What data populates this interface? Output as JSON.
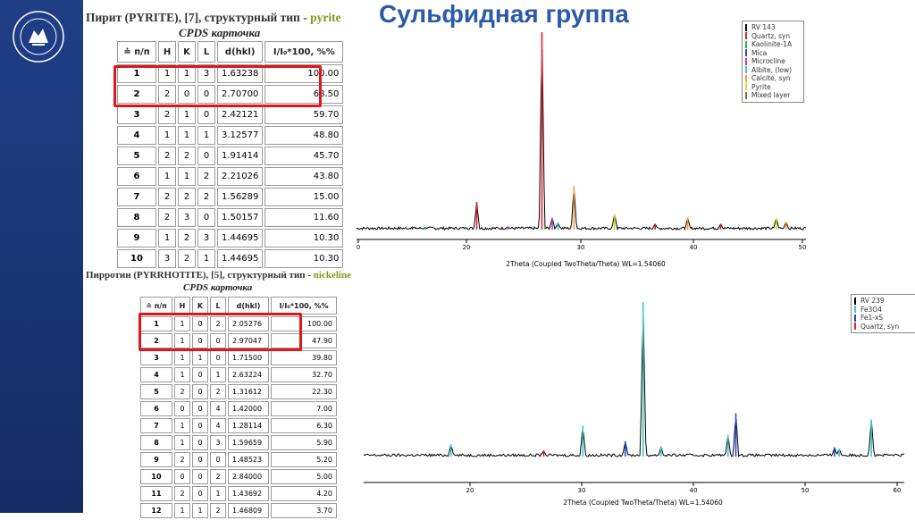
{
  "slide": {
    "title": "Сульфидная группа"
  },
  "pyrite": {
    "heading_prefix": "Пирит (PYRITE), [7], структурный тип - ",
    "heading_highlight": "pyrite",
    "card_label": "CPDS карточка",
    "headers": [
      "≐ п/п",
      "H",
      "K",
      "L",
      "d(hkl)",
      "I/I₀*100, %%"
    ],
    "rows": [
      [
        "1",
        "1",
        "1",
        "3",
        "1.63238",
        "100.00"
      ],
      [
        "2",
        "2",
        "0",
        "0",
        "2.70700",
        "68.50"
      ],
      [
        "3",
        "2",
        "1",
        "0",
        "2.42121",
        "59.70"
      ],
      [
        "4",
        "1",
        "1",
        "1",
        "3.12577",
        "48.80"
      ],
      [
        "5",
        "2",
        "2",
        "0",
        "1.91414",
        "45.70"
      ],
      [
        "6",
        "1",
        "1",
        "2",
        "2.21026",
        "43.80"
      ],
      [
        "7",
        "2",
        "2",
        "2",
        "1.56289",
        "15.00"
      ],
      [
        "8",
        "2",
        "3",
        "0",
        "1.50157",
        "11.60"
      ],
      [
        "9",
        "1",
        "2",
        "3",
        "1.44695",
        "10.30"
      ],
      [
        "10",
        "3",
        "2",
        "1",
        "1.44695",
        "10.30"
      ]
    ]
  },
  "pyrrhotite": {
    "heading_prefix": "Пирротин (PYRRHOTITE), [5], структурный тип - ",
    "heading_highlight": "nickeline",
    "card_label": "CPDS карточка",
    "headers": [
      "≐ п/п",
      "H",
      "K",
      "L",
      "d(hkl)",
      "I/I₀*100, %%"
    ],
    "rows": [
      [
        "1",
        "1",
        "0",
        "2",
        "2.05276",
        "100.00"
      ],
      [
        "2",
        "1",
        "0",
        "0",
        "2.97047",
        "47.90"
      ],
      [
        "3",
        "1",
        "1",
        "0",
        "1.71500",
        "39.80"
      ],
      [
        "4",
        "1",
        "0",
        "1",
        "2.63224",
        "32.70"
      ],
      [
        "5",
        "2",
        "0",
        "2",
        "1.31612",
        "22.30"
      ],
      [
        "6",
        "0",
        "0",
        "4",
        "1.42000",
        "7.00"
      ],
      [
        "7",
        "1",
        "0",
        "4",
        "1.28114",
        "6.30"
      ],
      [
        "8",
        "1",
        "0",
        "3",
        "1.59659",
        "5.90"
      ],
      [
        "9",
        "2",
        "0",
        "0",
        "1.48523",
        "5.20"
      ],
      [
        "10",
        "0",
        "0",
        "2",
        "2.84000",
        "5.00"
      ],
      [
        "11",
        "2",
        "0",
        "1",
        "1.43692",
        "4.20"
      ],
      [
        "12",
        "1",
        "1",
        "2",
        "1.46809",
        "3.70"
      ]
    ]
  },
  "colors": {
    "title": "#2c5aa8",
    "highlight_box": "#e0161b",
    "left_band": "#1f3e86",
    "pattern_line": "#000000"
  },
  "chart_data": [
    {
      "type": "line",
      "xlabel": "2Theta (Coupled TwoTheta/Theta) WL=1.54060",
      "xlim": [
        0,
        50
      ],
      "x_ticks": [
        "0",
        "20",
        "30",
        "40",
        "50"
      ],
      "legend_position": "top-right",
      "legend": [
        {
          "name": "RV 143",
          "color": "#000000"
        },
        {
          "name": "Quartz, syn",
          "color": "#e8232a"
        },
        {
          "name": "Kaolinite-1A",
          "color": "#22bb44"
        },
        {
          "name": "Mica",
          "color": "#2244dd"
        },
        {
          "name": "Microcline",
          "color": "#cc33cc"
        },
        {
          "name": "Albite, (low)",
          "color": "#33cccc"
        },
        {
          "name": "Calcite, syn",
          "color": "#ff9933"
        },
        {
          "name": "Pyrite",
          "color": "#dddd22"
        },
        {
          "name": "Mixed layer",
          "color": "#996633"
        }
      ],
      "peaks": [
        {
          "x": 10.0,
          "y": 1.5,
          "color": "#2244dd"
        },
        {
          "x": 12.4,
          "y": 1.2,
          "color": "#22bb44"
        },
        {
          "x": 19.8,
          "y": 1.3,
          "color": "#22bb44"
        },
        {
          "x": 20.9,
          "y": 14,
          "color": "#e8232a"
        },
        {
          "x": 23.6,
          "y": 1.6,
          "color": "#cc33cc"
        },
        {
          "x": 26.6,
          "y": 100,
          "color": "#e8232a"
        },
        {
          "x": 27.5,
          "y": 6,
          "color": "#cc33cc"
        },
        {
          "x": 28.0,
          "y": 3.5,
          "color": "#33cccc"
        },
        {
          "x": 29.4,
          "y": 22,
          "color": "#ff9933"
        },
        {
          "x": 33.0,
          "y": 8,
          "color": "#dddd22"
        },
        {
          "x": 36.6,
          "y": 3,
          "color": "#e8232a"
        },
        {
          "x": 39.5,
          "y": 6,
          "color": "#ff9933"
        },
        {
          "x": 42.5,
          "y": 3,
          "color": "#e8232a"
        },
        {
          "x": 47.6,
          "y": 6,
          "color": "#dddd22"
        },
        {
          "x": 48.5,
          "y": 4,
          "color": "#ff9933"
        }
      ]
    },
    {
      "type": "line",
      "xlabel": "2Theta (Coupled TwoTheta/Theta) WL=1.54060",
      "xlim": [
        10,
        60
      ],
      "x_ticks": [
        "20",
        "30",
        "40",
        "50",
        "60"
      ],
      "legend_position": "top-right",
      "legend": [
        {
          "name": "RV 239",
          "color": "#000000"
        },
        {
          "name": "Fe3O4",
          "color": "#33cccc"
        },
        {
          "name": "Fe1-xS",
          "color": "#2244dd"
        },
        {
          "name": "Quartz, syn",
          "color": "#e8232a"
        }
      ],
      "peaks": [
        {
          "x": 18.3,
          "y": 8,
          "color": "#33cccc"
        },
        {
          "x": 26.6,
          "y": 4,
          "color": "#e8232a"
        },
        {
          "x": 30.1,
          "y": 20,
          "color": "#33cccc"
        },
        {
          "x": 33.9,
          "y": 10,
          "color": "#2244dd"
        },
        {
          "x": 35.5,
          "y": 100,
          "color": "#33cccc"
        },
        {
          "x": 37.1,
          "y": 6,
          "color": "#33cccc"
        },
        {
          "x": 43.1,
          "y": 14,
          "color": "#33cccc"
        },
        {
          "x": 43.8,
          "y": 28,
          "color": "#2244dd"
        },
        {
          "x": 53.2,
          "y": 6,
          "color": "#2244dd"
        },
        {
          "x": 53.7,
          "y": 5,
          "color": "#33cccc"
        },
        {
          "x": 57.2,
          "y": 24,
          "color": "#33cccc"
        }
      ]
    }
  ]
}
